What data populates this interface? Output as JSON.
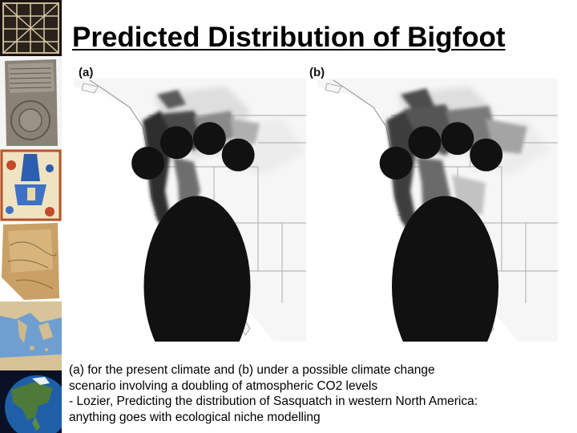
{
  "slide": {
    "title": "Predicted Distribution of Bigfoot"
  },
  "panels": [
    {
      "label": "(a)",
      "icon": "footprint-icon"
    },
    {
      "label": "(b)",
      "icon": "footprint-icon"
    }
  ],
  "caption": {
    "line1": "(a) for the present climate and (b) under a possible climate change",
    "line2": "scenario involving a doubling of atmospheric CO2 levels",
    "line3": "- Lozier, Predicting the distribution of Sasquatch in western North America:",
    "line4": "anything goes with ecological niche modelling"
  },
  "thumbnails": [
    {
      "name": "ancient-grid-artifact-thumb"
    },
    {
      "name": "clay-tablet-map-thumb"
    },
    {
      "name": "medieval-map-thumb"
    },
    {
      "name": "parchment-map-thumb"
    },
    {
      "name": "mediterranean-map-thumb"
    },
    {
      "name": "north-america-globe-thumb"
    }
  ],
  "colors": {
    "background": "#ffffff",
    "high_probability": "#3a3a3a",
    "low_probability": "#e6e6e6"
  }
}
